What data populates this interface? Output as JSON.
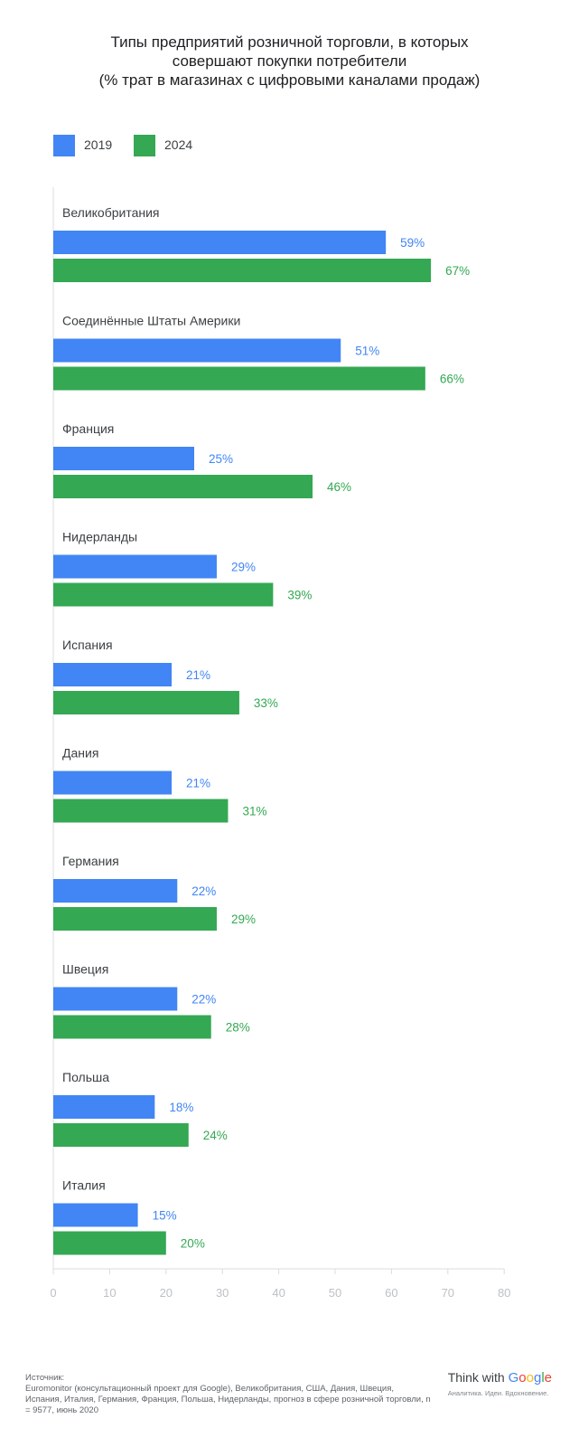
{
  "chart_data": {
    "type": "bar",
    "orientation": "horizontal",
    "title_lines": [
      "Типы предприятий розничной торговли, в которых",
      "совершают покупки потребители",
      "(% трат в магазинах с цифровыми каналами продаж)"
    ],
    "categories": [
      "Великобритания",
      "Соединённые Штаты Америки",
      "Франция",
      "Нидерланды",
      "Испания",
      "Дания",
      "Германия",
      "Швеция",
      "Польша",
      "Италия"
    ],
    "series": [
      {
        "name": "2019",
        "color": "#4285f4",
        "values": [
          59,
          51,
          25,
          29,
          21,
          21,
          22,
          22,
          18,
          15
        ],
        "labels": [
          "59%",
          "51%",
          "25%",
          "29%",
          "21%",
          "21%",
          "22%",
          "22%",
          "18%",
          "15%"
        ]
      },
      {
        "name": "2024",
        "color": "#34a853",
        "values": [
          67,
          66,
          46,
          39,
          33,
          31,
          29,
          28,
          24,
          20
        ],
        "labels": [
          "67%",
          "66%",
          "46%",
          "39%",
          "33%",
          "31%",
          "29%",
          "28%",
          "24%",
          "20%"
        ]
      }
    ],
    "xlim": [
      0,
      80
    ],
    "xticks": [
      0,
      10,
      20,
      30,
      40,
      50,
      60,
      70,
      80
    ],
    "xtick_labels": [
      "0",
      "10",
      "20",
      "30",
      "40",
      "50",
      "60",
      "70",
      "80"
    ],
    "grid": false,
    "legend_position": "top-left"
  },
  "source": {
    "label": "Источник:",
    "text": "Euromonitor (консультационный проект для Google), Великобритания, США, Дания, Швеция, Испания, Италия, Германия, Франция, Польша, Нидерланды, прогноз в сфере розничной торговли, n = 9577, июнь 2020"
  },
  "brand": {
    "think": "Think with",
    "google_letters": [
      "G",
      "o",
      "o",
      "g",
      "l",
      "e"
    ],
    "google_colors": [
      "#4285f4",
      "#ea4335",
      "#fbbc05",
      "#4285f4",
      "#34a853",
      "#ea4335"
    ],
    "tagline": "Аналитика. Идеи. Вдохновение."
  }
}
